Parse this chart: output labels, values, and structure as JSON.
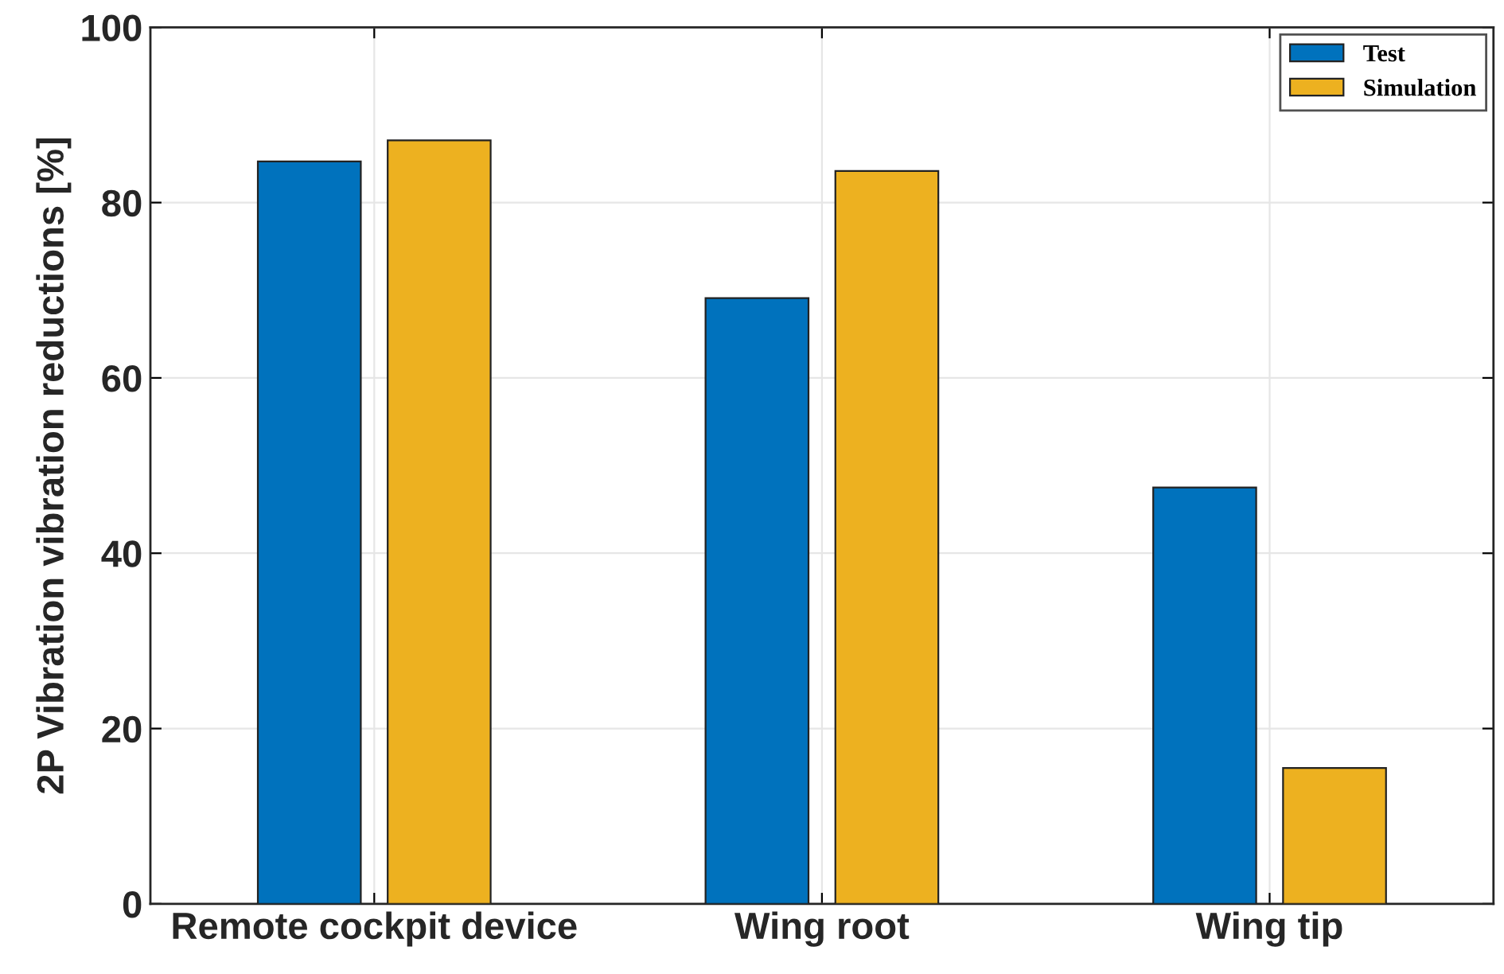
{
  "chart_data": {
    "type": "bar",
    "ylabel": "2P Vibration vibration reductions [%]",
    "categories": [
      "Remote cockpit device",
      "Wing root",
      "Wing tip"
    ],
    "series": [
      {
        "name": "Test",
        "color": "#0072bd",
        "values": [
          84.7,
          69.1,
          47.5
        ]
      },
      {
        "name": "Simulation",
        "color": "#edb120",
        "values": [
          87.1,
          83.6,
          15.5
        ]
      }
    ],
    "ylim": [
      0,
      100
    ],
    "yticks": [
      0,
      20,
      40,
      60,
      80,
      100
    ],
    "grid": true,
    "legend": "top right"
  }
}
